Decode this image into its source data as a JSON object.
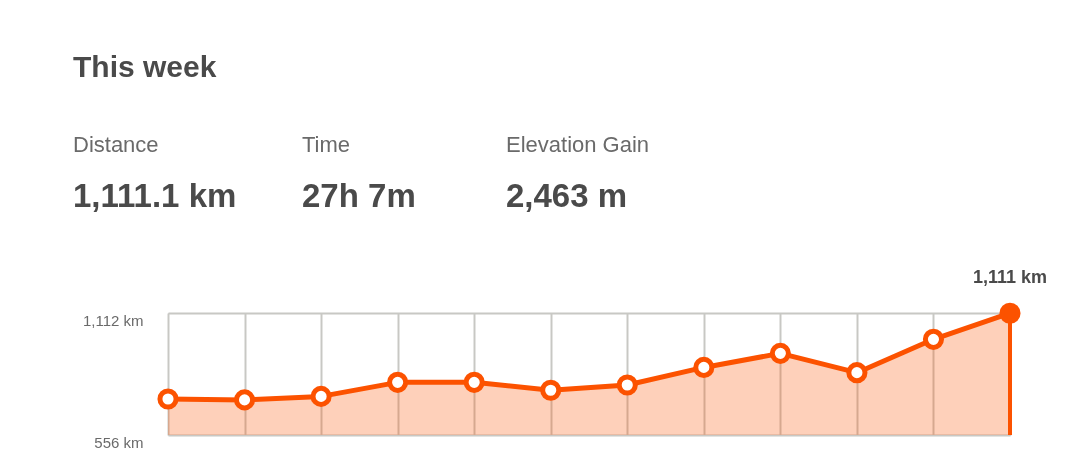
{
  "chart_data": {
    "type": "area",
    "title": "This week",
    "annotations": [
      "Distance",
      "1,111.1 km",
      "Time",
      "27h 7m",
      "Elevation Gain",
      "2,463 m"
    ],
    "categories": [
      null,
      null,
      null,
      null,
      null,
      null,
      null,
      null,
      null,
      null,
      null,
      null
    ],
    "series": [
      {
        "color": "#fc5200",
        "values": [
          720,
          716,
          732,
          796,
          796,
          760,
          784,
          864,
          928,
          840,
          992,
          1111
        ],
        "value_labels": [
          null,
          null,
          null,
          null,
          null,
          null,
          null,
          null,
          null,
          null,
          null,
          "1,111 km"
        ]
      }
    ],
    "ylim": [
      556,
      1112
    ],
    "yticks": [
      {
        "value": 556,
        "label": "556 km"
      },
      {
        "value": 1112,
        "label": "1,112 km"
      }
    ],
    "grid": true,
    "marker": "circle",
    "line_style": "solid",
    "tick_labels": "y"
  }
}
